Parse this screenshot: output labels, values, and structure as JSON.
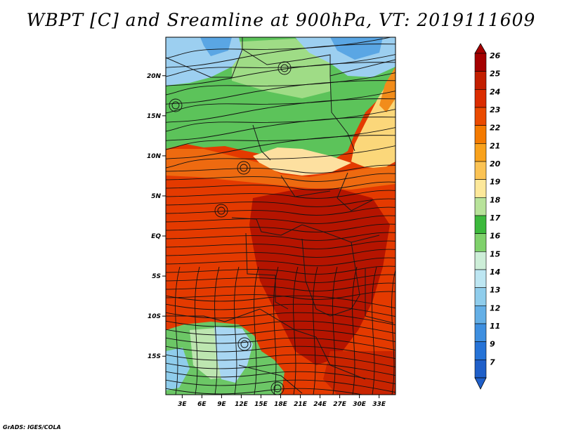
{
  "title": "WBPT [C] and Sreamline at 900hPa, VT: 2019111609",
  "credit": "GrADS: IGES/COLA",
  "map": {
    "lat_labels": [
      "20N",
      "15N",
      "10N",
      "5N",
      "EQ",
      "5S",
      "10S",
      "15S"
    ],
    "lat_values": [
      20,
      15,
      10,
      5,
      0,
      -5,
      -10,
      -15
    ],
    "lon_labels": [
      "3E",
      "6E",
      "9E",
      "12E",
      "15E",
      "18E",
      "21E",
      "24E",
      "27E",
      "30E",
      "33E"
    ],
    "lon_values": [
      3,
      6,
      9,
      12,
      15,
      18,
      21,
      24,
      27,
      30,
      33
    ],
    "lat_range": [
      -19.8,
      24.8
    ],
    "lon_range": [
      0.5,
      35.5
    ]
  },
  "colorbar": {
    "labels": [
      "26",
      "25",
      "24",
      "23",
      "22",
      "21",
      "20",
      "19",
      "18",
      "17",
      "16",
      "15",
      "14",
      "13",
      "12",
      "11",
      "9",
      "7"
    ],
    "colors": [
      "#a50000",
      "#c31e00",
      "#db2c00",
      "#ea4a00",
      "#f47a00",
      "#f9a21c",
      "#fbc354",
      "#fde89a",
      "#b8e39a",
      "#3cb93c",
      "#7fd16b",
      "#cdeed8",
      "#bde6f2",
      "#8fcdec",
      "#64afe6",
      "#3e8fe0",
      "#2673d7",
      "#1f5fc9"
    ]
  }
}
